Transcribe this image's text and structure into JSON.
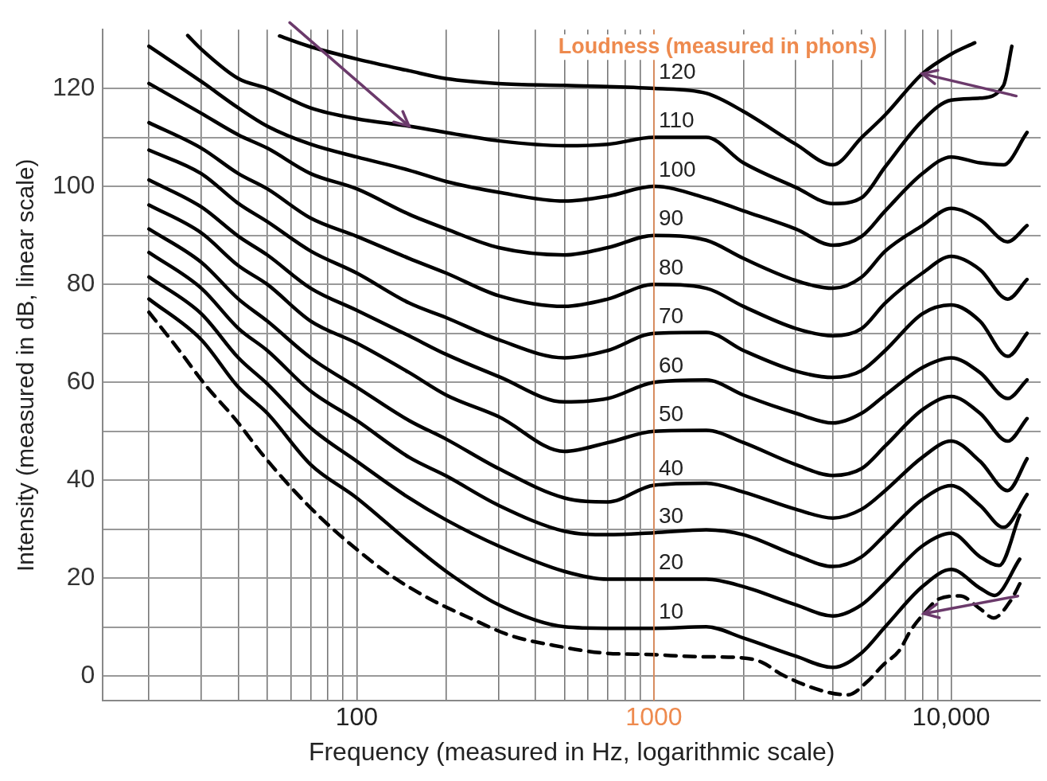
{
  "chart_data": {
    "type": "line",
    "xlabel": "Frequency (measured in Hz, logarithmic scale)",
    "ylabel": "Intensity (measured in dB, linear scale)",
    "log": "x",
    "xlim": [
      14,
      20000
    ],
    "ylim": [
      -5,
      132
    ],
    "xticks": [
      {
        "value": 20,
        "label": null
      },
      {
        "value": 30,
        "label": null
      },
      {
        "value": 40,
        "label": null
      },
      {
        "value": 50,
        "label": null
      },
      {
        "value": 60,
        "label": null
      },
      {
        "value": 70,
        "label": null
      },
      {
        "value": 80,
        "label": null
      },
      {
        "value": 90,
        "label": null
      },
      100,
      {
        "value": 200,
        "label": null
      },
      {
        "value": 300,
        "label": null
      },
      {
        "value": 400,
        "label": null
      },
      {
        "value": 500,
        "label": null
      },
      {
        "value": 600,
        "label": null
      },
      {
        "value": 700,
        "label": null
      },
      {
        "value": 800,
        "label": null
      },
      {
        "value": 900,
        "label": null
      },
      1000,
      {
        "value": 2000,
        "label": null
      },
      {
        "value": 3000,
        "label": null
      },
      {
        "value": 4000,
        "label": null
      },
      {
        "value": 5000,
        "label": null
      },
      {
        "value": 6000,
        "label": null
      },
      {
        "value": 7000,
        "label": null
      },
      {
        "value": 8000,
        "label": null
      },
      {
        "value": 9000,
        "label": null
      },
      {
        "value": 10000,
        "label": "10,000"
      }
    ],
    "yticks": [
      0,
      {
        "value": 10,
        "label": null
      },
      20,
      {
        "value": 30,
        "label": null
      },
      40,
      {
        "value": 50,
        "label": null
      },
      60,
      {
        "value": 70,
        "label": null
      },
      80,
      {
        "value": 90,
        "label": null
      },
      100,
      {
        "value": 110,
        "label": null
      },
      120
    ],
    "grid": true,
    "legend": false,
    "marker": "none",
    "ref_lines": [
      {
        "axis": "x",
        "value": 1000,
        "label": "Loudness (measured in phons)",
        "color": "#ee8a4e"
      }
    ],
    "series": [
      {
        "name": "120",
        "color": "#000000",
        "x": [
          55,
          70,
          100,
          150,
          200,
          300,
          500,
          1000,
          1500,
          2000,
          3000,
          4000,
          5000,
          6000,
          8000,
          10000,
          12000
        ],
        "values": [
          130.7,
          128.5,
          126,
          123.6,
          122,
          121,
          120.6,
          120,
          119,
          115.3,
          108.6,
          104.4,
          110,
          114.6,
          123,
          127,
          129.3
        ]
      },
      {
        "name": "110",
        "color": "#000000",
        "x": [
          27,
          30,
          40,
          50,
          70,
          100,
          150,
          200,
          300,
          500,
          700,
          1000,
          1500,
          2000,
          3000,
          4000,
          5000,
          6000,
          8000,
          10000,
          12500,
          15000,
          16000
        ],
        "values": [
          130.8,
          128,
          122,
          120,
          116,
          113.8,
          112.3,
          111,
          109.3,
          108.3,
          108.6,
          110,
          110,
          104.8,
          99.8,
          96.5,
          97.7,
          104,
          113.4,
          117.6,
          118,
          120.6,
          128.6
        ]
      },
      {
        "name": "100",
        "color": "#000000",
        "x": [
          20,
          30,
          40,
          50,
          70,
          100,
          150,
          200,
          300,
          500,
          700,
          1000,
          1500,
          2000,
          3000,
          4000,
          5000,
          6000,
          8000,
          10000,
          12500,
          15000,
          18000
        ],
        "values": [
          128.6,
          121.4,
          116,
          112.3,
          108.6,
          106,
          103.3,
          101,
          98.8,
          97,
          98,
          100,
          97.6,
          95,
          91.3,
          88,
          89.8,
          95,
          102.6,
          106,
          104.8,
          104.4,
          111
        ]
      },
      {
        "name": "90",
        "color": "#000000",
        "x": [
          20,
          30,
          40,
          50,
          70,
          100,
          150,
          200,
          300,
          500,
          700,
          1000,
          1500,
          2000,
          3000,
          4000,
          5000,
          6000,
          8000,
          10000,
          12500,
          15500,
          18000
        ],
        "values": [
          121,
          114.9,
          110.5,
          107.8,
          102.6,
          99.5,
          94.3,
          91.3,
          87.5,
          86,
          87.5,
          90,
          89,
          85.3,
          80.8,
          79.2,
          81.5,
          86.8,
          92,
          95.5,
          93.2,
          88.7,
          92
        ]
      },
      {
        "name": "80",
        "color": "#000000",
        "x": [
          20,
          30,
          40,
          50,
          70,
          100,
          150,
          200,
          300,
          500,
          700,
          1000,
          1500,
          2000,
          3000,
          4000,
          5000,
          6000,
          8000,
          10000,
          12500,
          15500,
          18000
        ],
        "values": [
          113,
          107.8,
          102.6,
          99.5,
          93.5,
          89.8,
          85.3,
          82.3,
          77.7,
          75.5,
          77,
          80,
          79.2,
          75.5,
          71,
          69.5,
          71,
          76.2,
          82.3,
          85.7,
          83,
          77,
          81
        ]
      },
      {
        "name": "70",
        "color": "#000000",
        "x": [
          20,
          30,
          40,
          50,
          70,
          100,
          150,
          200,
          300,
          500,
          700,
          1000,
          1500,
          2000,
          3000,
          4000,
          5000,
          6000,
          8000,
          10000,
          12500,
          15500,
          18000
        ],
        "values": [
          107.4,
          102.6,
          96.5,
          92.8,
          86.8,
          82.3,
          76.2,
          73.2,
          68.7,
          65,
          66.5,
          70,
          70.2,
          66.5,
          62.3,
          61,
          62.4,
          66.5,
          74,
          75.8,
          72.5,
          65.3,
          70
        ]
      },
      {
        "name": "60",
        "color": "#000000",
        "x": [
          20,
          30,
          40,
          50,
          70,
          100,
          150,
          200,
          300,
          500,
          700,
          1000,
          1500,
          2000,
          3000,
          4000,
          5000,
          6000,
          8000,
          10000,
          12500,
          15500,
          18000
        ],
        "values": [
          101.3,
          95.8,
          89.8,
          86,
          79.2,
          74.7,
          69.5,
          65.7,
          61.2,
          56,
          56.7,
          60,
          60.5,
          57.4,
          53.7,
          51.7,
          53.7,
          57.4,
          63,
          65,
          62,
          56.7,
          60.5
        ]
      },
      {
        "name": "50",
        "color": "#000000",
        "x": [
          20,
          30,
          40,
          50,
          70,
          100,
          150,
          200,
          300,
          500,
          700,
          1000,
          1500,
          2000,
          3000,
          4000,
          5000,
          6000,
          8000,
          10000,
          12500,
          15500,
          18000
        ],
        "values": [
          96.2,
          90.5,
          83.8,
          80,
          72.5,
          68,
          62,
          57.4,
          53,
          45.9,
          47.7,
          50,
          50.2,
          47.7,
          43.2,
          41,
          42.4,
          47,
          54.4,
          57.1,
          53.7,
          48,
          52.6
        ]
      },
      {
        "name": "40",
        "color": "#000000",
        "x": [
          20,
          30,
          40,
          50,
          70,
          100,
          150,
          200,
          300,
          500,
          700,
          1000,
          1500,
          2000,
          3000,
          4000,
          5000,
          6000,
          8000,
          10000,
          12500,
          15500,
          18000
        ],
        "values": [
          91.3,
          84.5,
          77,
          72.5,
          65,
          59,
          52.2,
          48.4,
          42.4,
          36.4,
          35.6,
          39,
          39.4,
          37.6,
          34.1,
          32.3,
          34.1,
          37.9,
          44.7,
          48,
          43.9,
          37.9,
          44.4
        ]
      },
      {
        "name": "30",
        "color": "#000000",
        "x": [
          20,
          30,
          40,
          50,
          70,
          100,
          150,
          200,
          300,
          500,
          700,
          1000,
          1500,
          2000,
          3000,
          4000,
          5000,
          6000,
          8000,
          10000,
          12500,
          15000,
          18000
        ],
        "values": [
          86.5,
          79.2,
          71,
          66.5,
          58.2,
          52.2,
          44.7,
          40.9,
          34.9,
          29.6,
          28.9,
          29.3,
          29.9,
          28.9,
          24.7,
          22.4,
          24.4,
          28.9,
          36.1,
          38.9,
          34.9,
          30.4,
          37.1
        ]
      },
      {
        "name": "20",
        "color": "#000000",
        "x": [
          20,
          30,
          40,
          50,
          70,
          100,
          150,
          200,
          300,
          500,
          700,
          1000,
          1500,
          2000,
          3000,
          4000,
          5000,
          6000,
          8000,
          10000,
          12500,
          14500,
          17000
        ],
        "values": [
          81.5,
          74,
          65,
          59.7,
          50.7,
          43.9,
          36.4,
          31.9,
          26.6,
          21.4,
          19.8,
          19.8,
          19.8,
          18.3,
          14.6,
          12.3,
          14.6,
          19.1,
          26.6,
          29.2,
          24.4,
          22.6,
          32.9
        ]
      },
      {
        "name": "10",
        "color": "#000000",
        "x": [
          20,
          30,
          40,
          50,
          70,
          100,
          150,
          200,
          300,
          500,
          700,
          1000,
          1500,
          2000,
          3000,
          4000,
          5000,
          6000,
          8000,
          10000,
          12500,
          14000,
          17000
        ],
        "values": [
          77,
          68.7,
          59,
          53.7,
          43.2,
          36.4,
          27.4,
          21.4,
          14.6,
          10.1,
          9.8,
          9.8,
          10.1,
          7.8,
          4.1,
          1.8,
          4.8,
          10.1,
          18.3,
          21.8,
          18,
          16.5,
          23.9
        ]
      },
      {
        "color": "#000000",
        "line_style": "dashed",
        "x": [
          20,
          25,
          31,
          39,
          48,
          60,
          77,
          100,
          130,
          176,
          240,
          330,
          460,
          660,
          1000,
          1400,
          1950,
          2300,
          2700,
          3800,
          4500,
          5200,
          5900,
          6700,
          7300,
          8100,
          9100,
          10700,
          12500,
          13900,
          15800,
          17200
        ],
        "values": [
          74.3,
          66.9,
          59.4,
          52.5,
          45.4,
          38.6,
          31.9,
          25.9,
          20.6,
          15.8,
          11.9,
          8.3,
          6.3,
          4.8,
          4.4,
          4,
          3.8,
          2.9,
          0.3,
          -3.2,
          -3.8,
          -1.2,
          2.3,
          5.3,
          9.3,
          12.8,
          15.8,
          16.4,
          13.8,
          11.9,
          15.3,
          19.4
        ]
      }
    ]
  }
}
